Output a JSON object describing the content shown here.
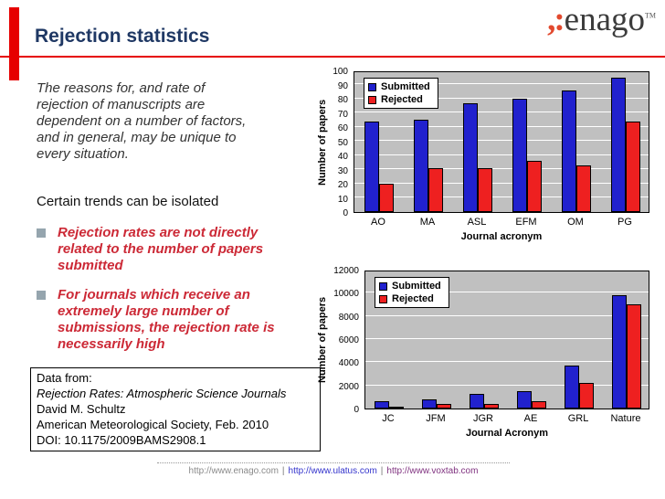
{
  "header": {
    "title": "Rejection statistics",
    "logo": {
      "mark": ",:",
      "text": "enago",
      "tm": "TM"
    }
  },
  "body": {
    "intro": "The reasons for, and rate of rejection of manuscripts are dependent on a number of factors, and in general, may be unique to every situation.",
    "trends_line": "Certain trends can be isolated",
    "bullets": [
      {
        "text": "Rejection rates are not directly related to the number of papers submitted"
      },
      {
        "text": "For journals which receive an extremely large number of submissions, the rejection rate is necessarily high"
      }
    ]
  },
  "data_box": {
    "lines": [
      {
        "text": "Data from:",
        "italic": false
      },
      {
        "text": "Rejection Rates: Atmospheric Science Journals",
        "italic": true
      },
      {
        "text": "David M. Schultz",
        "italic": false
      },
      {
        "text": "American Meteorological Society, Feb. 2010",
        "italic": false
      },
      {
        "text": "DOI: 10.1175/2009BAMS2908.1",
        "italic": false
      }
    ]
  },
  "footer": {
    "links": [
      "http://www.enago.com",
      "http://www.ulatus.com",
      "http://www.voxtab.com"
    ],
    "separator": "|"
  },
  "colors": {
    "submitted": "#2121ce",
    "rejected": "#ee2020",
    "accent_red": "#e60000",
    "title_navy": "#1f3864",
    "bullet_red": "#cc2936",
    "bullet_square": "#95a5ae",
    "link_gray": "#8a8a8a",
    "link_blue": "#3333cc",
    "link_purple": "#803380",
    "plot_background": "#c0c0c0"
  },
  "chart_data": [
    {
      "type": "bar",
      "categories": [
        "AO",
        "MA",
        "ASL",
        "EFM",
        "OM",
        "PG"
      ],
      "series": [
        {
          "name": "Submitted",
          "values": [
            64,
            65,
            77,
            80,
            86,
            95
          ]
        },
        {
          "name": "Rejected",
          "values": [
            20,
            31,
            31,
            36,
            33,
            64
          ]
        }
      ],
      "xlabel": "Journal acronym",
      "ylabel": "Number of papers",
      "ylim": [
        0,
        100
      ],
      "ytick_step": 10,
      "grid": true,
      "legend_position": "top-left-inside"
    },
    {
      "type": "bar",
      "categories": [
        "JC",
        "JFM",
        "JGR",
        "AE",
        "GRL",
        "Nature"
      ],
      "series": [
        {
          "name": "Submitted",
          "values": [
            600,
            800,
            1300,
            1500,
            3700,
            9800
          ]
        },
        {
          "name": "Rejected",
          "values": [
            100,
            400,
            400,
            600,
            2200,
            9000
          ]
        }
      ],
      "xlabel": "Journal Acronym",
      "ylabel": "Number of papers",
      "ylim": [
        0,
        12000
      ],
      "ytick_step": 2000,
      "grid": true,
      "legend_position": "top-left-inside"
    }
  ]
}
